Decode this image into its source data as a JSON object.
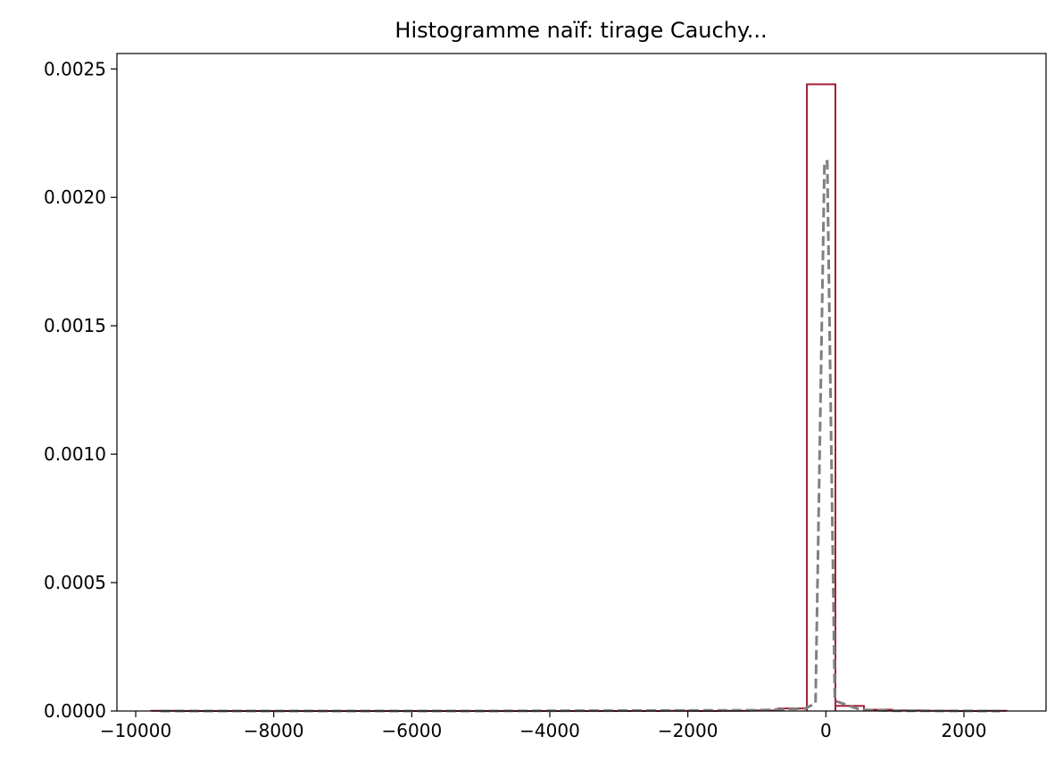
{
  "chart_data": {
    "type": "histogram",
    "title": "Histogramme naïf: tirage Cauchy...",
    "bins": [
      -9774,
      -9361,
      -8948,
      -8535,
      -8122,
      -7709,
      -7296,
      -6883,
      -6470,
      -6057,
      -5644,
      -5231,
      -4818,
      -4405,
      -3992,
      -3579,
      -3166,
      -2753,
      -2340,
      -1927,
      -1514,
      -1101,
      -688,
      -275,
      138,
      551,
      964,
      1377,
      1790,
      2203,
      2616
    ],
    "values": [
      1e-06,
      0,
      0,
      0,
      0,
      0,
      0,
      0,
      0,
      0,
      0,
      0,
      0,
      0,
      0,
      0,
      0,
      0,
      1e-06,
      0,
      1e-06,
      2e-06,
      1e-05,
      0.00244,
      2e-05,
      5e-06,
      2e-06,
      1e-06,
      0,
      1e-06
    ],
    "color": "#a31f34",
    "line": {
      "x": [
        -9640,
        -5000,
        -1000,
        -300,
        -150,
        -20,
        20,
        130,
        500,
        1000,
        2520
      ],
      "values": [
        0,
        0,
        3e-06,
        1e-05,
        3e-05,
        0.00214,
        0.00214,
        4e-05,
        5e-06,
        1e-06,
        0
      ],
      "color": "#808080",
      "style": "dashed"
    },
    "xlim": [
      -10272,
      3190
    ],
    "ylim": [
      0,
      0.00256
    ],
    "xticks": [
      {
        "value": -10000,
        "label": "−10000"
      },
      {
        "value": -8000,
        "label": "−8000"
      },
      {
        "value": -6000,
        "label": "−6000"
      },
      {
        "value": -4000,
        "label": "−4000"
      },
      {
        "value": -2000,
        "label": "−2000"
      },
      0,
      2000
    ],
    "yticks": [
      {
        "value": 0,
        "label": "0.0000"
      },
      {
        "value": 0.0005,
        "label": "0.0005"
      },
      {
        "value": 0.001,
        "label": "0.0010"
      },
      {
        "value": 0.0015,
        "label": "0.0015"
      },
      {
        "value": 0.002,
        "label": "0.0020"
      },
      {
        "value": 0.0025,
        "label": "0.0025"
      }
    ]
  }
}
